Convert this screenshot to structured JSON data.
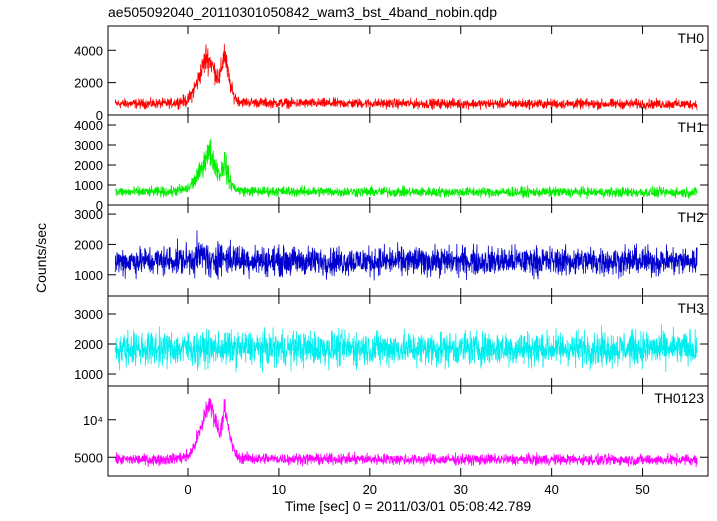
{
  "chart_data": {
    "type": "line",
    "title": "ae505092040_20110301050842_wam3_bst_4band_nobin.qdp",
    "xlabel": "Time [sec] 0 = 2011/03/01 05:08:42.789",
    "ylabel": "Counts/sec",
    "xlim": [
      -8.8,
      57.2
    ],
    "xticks": [
      {
        "value": 0,
        "label": "0"
      },
      {
        "value": 10,
        "label": "10"
      },
      {
        "value": 20,
        "label": "20"
      },
      {
        "value": 30,
        "label": "30"
      },
      {
        "value": 40,
        "label": "40"
      },
      {
        "value": 50,
        "label": "50"
      }
    ],
    "panels": [
      {
        "name": "TH0",
        "color": "#ff0000",
        "ylim": [
          0,
          5500
        ],
        "yticks": [
          {
            "value": 0,
            "label": "0"
          },
          {
            "value": 2000,
            "label": "2000"
          },
          {
            "value": 4000,
            "label": "4000"
          }
        ],
        "series": {
          "x": [
            -8,
            -6,
            -4,
            -2,
            0,
            0.5,
            1,
            1.5,
            2,
            2.5,
            3,
            3.5,
            4,
            4.5,
            5,
            5.5,
            6,
            8,
            10,
            15,
            20,
            25,
            30,
            35,
            40,
            45,
            50,
            55,
            56
          ],
          "y": [
            700,
            700,
            700,
            720,
            900,
            1400,
            2000,
            2800,
            3600,
            3300,
            2600,
            2300,
            3900,
            2200,
            1200,
            900,
            800,
            760,
            740,
            720,
            720,
            700,
            700,
            690,
            690,
            680,
            680,
            670,
            670
          ],
          "spread": [
            450,
            450,
            450,
            450,
            600,
            800,
            900,
            1000,
            1400,
            1100,
            1000,
            1000,
            1400,
            900,
            600,
            500,
            450,
            450,
            450,
            450,
            450,
            450,
            450,
            450,
            450,
            450,
            450,
            450,
            450
          ]
        }
      },
      {
        "name": "TH1",
        "color": "#00ee00",
        "ylim": [
          0,
          4500
        ],
        "yticks": [
          {
            "value": 0,
            "label": "0"
          },
          {
            "value": 1000,
            "label": "1000"
          },
          {
            "value": 2000,
            "label": "2000"
          },
          {
            "value": 3000,
            "label": "3000"
          },
          {
            "value": 4000,
            "label": "4000"
          }
        ],
        "series": {
          "x": [
            -8,
            -6,
            -4,
            -2,
            0,
            0.5,
            1,
            1.5,
            2,
            2.5,
            3,
            3.5,
            4,
            4.5,
            5,
            5.5,
            6,
            8,
            10,
            15,
            20,
            25,
            30,
            35,
            40,
            45,
            50,
            55,
            56
          ],
          "y": [
            650,
            650,
            650,
            660,
            800,
            1100,
            1400,
            1800,
            2500,
            2600,
            2000,
            1500,
            2200,
            1300,
            900,
            750,
            700,
            680,
            680,
            670,
            660,
            650,
            650,
            640,
            640,
            640,
            630,
            630,
            630
          ],
          "spread": [
            380,
            380,
            380,
            380,
            450,
            550,
            650,
            750,
            1000,
            1100,
            800,
            700,
            1200,
            700,
            450,
            400,
            380,
            380,
            380,
            380,
            380,
            380,
            380,
            380,
            380,
            380,
            380,
            380,
            380
          ]
        }
      },
      {
        "name": "TH2",
        "color": "#0000cc",
        "ylim": [
          300,
          3300
        ],
        "yticks": [
          {
            "value": 1000,
            "label": "1000"
          },
          {
            "value": 2000,
            "label": "2000"
          },
          {
            "value": 3000,
            "label": "3000"
          }
        ],
        "series": {
          "x": [
            -8,
            -4,
            0,
            1,
            2,
            2.5,
            3,
            4,
            6,
            10,
            20,
            30,
            40,
            50,
            56
          ],
          "y": [
            1450,
            1450,
            1500,
            1600,
            1650,
            1200,
            1600,
            1550,
            1500,
            1450,
            1450,
            1450,
            1450,
            1450,
            1450
          ],
          "spread": [
            700,
            700,
            750,
            900,
            900,
            800,
            900,
            800,
            750,
            700,
            700,
            700,
            700,
            700,
            700
          ]
        }
      },
      {
        "name": "TH3",
        "color": "#00eeee",
        "ylim": [
          600,
          3600
        ],
        "yticks": [
          {
            "value": 1000,
            "label": "1000"
          },
          {
            "value": 2000,
            "label": "2000"
          },
          {
            "value": 3000,
            "label": "3000"
          }
        ],
        "series": {
          "x": [
            -8,
            0,
            10,
            20,
            30,
            40,
            50,
            56
          ],
          "y": [
            1850,
            1850,
            1850,
            1850,
            1850,
            1850,
            1850,
            1850
          ],
          "spread": [
            850,
            850,
            850,
            850,
            850,
            850,
            850,
            850
          ]
        }
      },
      {
        "name": "TH0123",
        "color": "#ff00ff",
        "ylim": [
          2500,
          14500
        ],
        "yticks": [
          {
            "value": 5000,
            "label": "5000"
          },
          {
            "value": 10000,
            "label": "10⁴"
          }
        ],
        "series": {
          "x": [
            -8,
            -6,
            -4,
            -2,
            0,
            0.5,
            1,
            1.5,
            2,
            2.5,
            3,
            3.5,
            4,
            4.5,
            5,
            5.5,
            6,
            8,
            10,
            15,
            20,
            25,
            30,
            35,
            40,
            45,
            50,
            55,
            56
          ],
          "y": [
            4700,
            4700,
            4700,
            4750,
            5100,
            6000,
            7500,
            9000,
            11500,
            12000,
            10000,
            8200,
            11500,
            8500,
            6000,
            5000,
            4900,
            4800,
            4800,
            4750,
            4750,
            4700,
            4700,
            4700,
            4700,
            4650,
            4650,
            4650,
            4650
          ],
          "spread": [
            1100,
            1100,
            1100,
            1100,
            1200,
            1400,
            1600,
            1800,
            2200,
            2400,
            1800,
            1600,
            2400,
            1600,
            1200,
            1100,
            1100,
            1100,
            1100,
            1100,
            1100,
            1100,
            1100,
            1100,
            1100,
            1100,
            1100,
            1100,
            1100
          ]
        }
      }
    ]
  }
}
